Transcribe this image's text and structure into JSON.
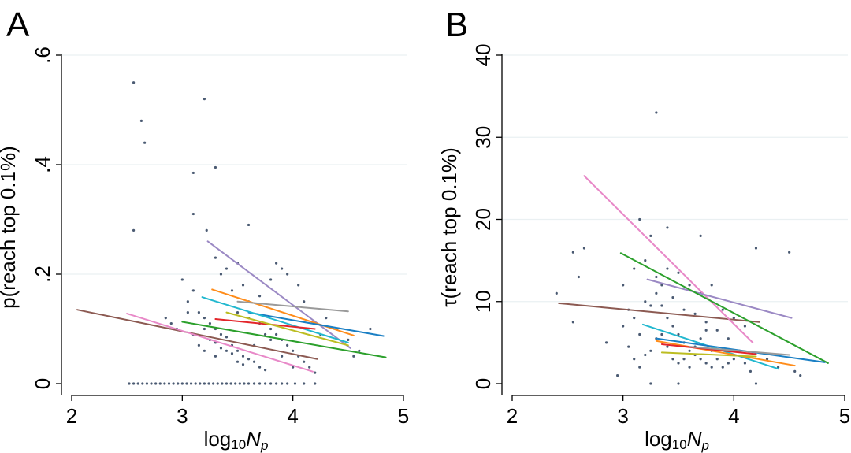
{
  "chart_data": [
    {
      "panel": "A",
      "type": "scatter",
      "ylabel": "p(reach top 0.1%)",
      "xlabel_main": "log",
      "xlabel_sub": "10",
      "xlabel_var": "N",
      "xlabel_var_sub": "p",
      "xlim": [
        2,
        5
      ],
      "ylim": [
        0,
        0.6
      ],
      "xticks": [
        2,
        3,
        4,
        5
      ],
      "xtick_labels": [
        "2",
        "3",
        "4",
        "5"
      ],
      "yticks": [
        0,
        0.2,
        0.4,
        0.6
      ],
      "ytick_labels": [
        "0",
        ".2",
        ".4",
        ".6"
      ],
      "grid": true,
      "colors": {
        "point": "#4a5a72",
        "grid": "#eaf0f2"
      },
      "points": [
        [
          2.56,
          0.55
        ],
        [
          2.63,
          0.48
        ],
        [
          2.66,
          0.44
        ],
        [
          2.56,
          0.28
        ],
        [
          3.2,
          0.52
        ],
        [
          3.1,
          0.385
        ],
        [
          3.3,
          0.395
        ],
        [
          3.1,
          0.31
        ],
        [
          3.22,
          0.28
        ],
        [
          3.6,
          0.29
        ],
        [
          3.3,
          0.23
        ],
        [
          3.35,
          0.2
        ],
        [
          3.4,
          0.21
        ],
        [
          3.5,
          0.22
        ],
        [
          3.55,
          0.18
        ],
        [
          3.45,
          0.17
        ],
        [
          3.85,
          0.22
        ],
        [
          3.9,
          0.21
        ],
        [
          3.8,
          0.19
        ],
        [
          3.95,
          0.2
        ],
        [
          4.05,
          0.18
        ],
        [
          4.1,
          0.15
        ],
        [
          3.7,
          0.16
        ],
        [
          3.6,
          0.15
        ],
        [
          3.0,
          0.19
        ],
        [
          3.1,
          0.17
        ],
        [
          3.05,
          0.15
        ],
        [
          3.15,
          0.13
        ],
        [
          3.2,
          0.12
        ],
        [
          3.25,
          0.11
        ],
        [
          3.3,
          0.1
        ],
        [
          3.35,
          0.09
        ],
        [
          3.4,
          0.085
        ],
        [
          3.45,
          0.07
        ],
        [
          3.5,
          0.06
        ],
        [
          3.55,
          0.05
        ],
        [
          3.6,
          0.045
        ],
        [
          3.65,
          0.04
        ],
        [
          3.7,
          0.03
        ],
        [
          3.75,
          0.025
        ],
        [
          3.2,
          0.1
        ],
        [
          3.25,
          0.08
        ],
        [
          3.3,
          0.075
        ],
        [
          3.35,
          0.065
        ],
        [
          3.4,
          0.06
        ],
        [
          3.45,
          0.055
        ],
        [
          3.5,
          0.04
        ],
        [
          3.55,
          0.035
        ],
        [
          3.8,
          0.1
        ],
        [
          3.85,
          0.09
        ],
        [
          3.9,
          0.08
        ],
        [
          3.95,
          0.07
        ],
        [
          4.0,
          0.06
        ],
        [
          4.05,
          0.05
        ],
        [
          4.1,
          0.04
        ],
        [
          4.15,
          0.03
        ],
        [
          3.6,
          0.12
        ],
        [
          3.7,
          0.11
        ],
        [
          3.75,
          0.09
        ],
        [
          3.8,
          0.08
        ],
        [
          3.9,
          0.05
        ],
        [
          4.0,
          0.03
        ],
        [
          4.2,
          0.02
        ],
        [
          4.55,
          0.05
        ],
        [
          2.85,
          0.12
        ],
        [
          2.9,
          0.11
        ],
        [
          2.95,
          0.1
        ],
        [
          3.05,
          0.13
        ],
        [
          3.1,
          0.09
        ],
        [
          3.15,
          0.07
        ],
        [
          3.2,
          0.06
        ],
        [
          3.3,
          0.05
        ],
        [
          4.3,
          0.12
        ],
        [
          4.4,
          0.1
        ],
        [
          4.5,
          0.08
        ],
        [
          4.6,
          0.06
        ],
        [
          4.7,
          0.1
        ],
        [
          4.25,
          0.09
        ],
        [
          3.5,
          0.13
        ],
        [
          3.65,
          0.07
        ],
        [
          2.52,
          0
        ],
        [
          2.56,
          0
        ],
        [
          2.6,
          0
        ],
        [
          2.64,
          0
        ],
        [
          2.68,
          0
        ],
        [
          2.72,
          0
        ],
        [
          2.76,
          0
        ],
        [
          2.8,
          0
        ],
        [
          2.84,
          0
        ],
        [
          2.88,
          0
        ],
        [
          2.92,
          0
        ],
        [
          2.96,
          0
        ],
        [
          3.0,
          0
        ],
        [
          3.04,
          0
        ],
        [
          3.08,
          0
        ],
        [
          3.12,
          0
        ],
        [
          3.16,
          0
        ],
        [
          3.2,
          0
        ],
        [
          3.24,
          0
        ],
        [
          3.28,
          0
        ],
        [
          3.32,
          0
        ],
        [
          3.36,
          0
        ],
        [
          3.4,
          0
        ],
        [
          3.44,
          0
        ],
        [
          3.48,
          0
        ],
        [
          3.52,
          0
        ],
        [
          3.56,
          0
        ],
        [
          3.6,
          0
        ],
        [
          3.65,
          0
        ],
        [
          3.7,
          0
        ],
        [
          3.75,
          0
        ],
        [
          3.8,
          0
        ],
        [
          3.85,
          0
        ],
        [
          3.9,
          0
        ],
        [
          3.95,
          0
        ],
        [
          4.02,
          0
        ],
        [
          4.1,
          0
        ],
        [
          4.2,
          0
        ]
      ],
      "lines": [
        {
          "color": "#8c5a52",
          "x": [
            2.05,
            4.22
          ],
          "y": [
            0.135,
            0.045
          ]
        },
        {
          "color": "#e889c8",
          "x": [
            2.5,
            4.18
          ],
          "y": [
            0.128,
            0.022
          ]
        },
        {
          "color": "#9b89c4",
          "x": [
            3.23,
            4.52
          ],
          "y": [
            0.26,
            0.065
          ]
        },
        {
          "color": "#ff8c1a",
          "x": [
            3.27,
            4.55
          ],
          "y": [
            0.172,
            0.088
          ]
        },
        {
          "color": "#1a7fc4",
          "x": [
            3.6,
            4.82
          ],
          "y": [
            0.13,
            0.087
          ]
        },
        {
          "color": "#22b8cf",
          "x": [
            3.18,
            4.5
          ],
          "y": [
            0.158,
            0.075
          ]
        },
        {
          "color": "#9a9a9a",
          "x": [
            3.5,
            4.5
          ],
          "y": [
            0.15,
            0.132
          ]
        },
        {
          "color": "#2ca02c",
          "x": [
            3.0,
            4.84
          ],
          "y": [
            0.113,
            0.048
          ]
        },
        {
          "color": "#e3252a",
          "x": [
            3.3,
            4.2
          ],
          "y": [
            0.118,
            0.1
          ]
        },
        {
          "color": "#bcbd22",
          "x": [
            3.4,
            4.5
          ],
          "y": [
            0.13,
            0.07
          ]
        }
      ]
    },
    {
      "panel": "B",
      "type": "scatter",
      "ylabel": "τ(reach top 0.1%)",
      "xlabel_main": "log",
      "xlabel_sub": "10",
      "xlabel_var": "N",
      "xlabel_var_sub": "p",
      "xlim": [
        2,
        5
      ],
      "ylim": [
        0,
        40
      ],
      "xticks": [
        2,
        3,
        4,
        5
      ],
      "xtick_labels": [
        "2",
        "3",
        "4",
        "5"
      ],
      "yticks": [
        0,
        10,
        20,
        30,
        40
      ],
      "ytick_labels": [
        "0",
        "10",
        "20",
        "30",
        "40"
      ],
      "grid": true,
      "colors": {
        "point": "#4a5a72",
        "grid": "#eaf0f2"
      },
      "points": [
        [
          3.3,
          33
        ],
        [
          2.55,
          16
        ],
        [
          2.65,
          16.5
        ],
        [
          2.6,
          13
        ],
        [
          3.15,
          20
        ],
        [
          3.25,
          18
        ],
        [
          3.4,
          19
        ],
        [
          3.7,
          18
        ],
        [
          4.2,
          16.5
        ],
        [
          4.5,
          16
        ],
        [
          2.4,
          11
        ],
        [
          2.55,
          7.5
        ],
        [
          2.85,
          5
        ],
        [
          3.0,
          7
        ],
        [
          3.05,
          9
        ],
        [
          3.1,
          8
        ],
        [
          3.15,
          6
        ],
        [
          3.2,
          10
        ],
        [
          3.25,
          9.5
        ],
        [
          3.3,
          11
        ],
        [
          3.35,
          12
        ],
        [
          3.4,
          8
        ],
        [
          3.45,
          7
        ],
        [
          3.5,
          6
        ],
        [
          3.55,
          5
        ],
        [
          3.6,
          4
        ],
        [
          3.65,
          3.5
        ],
        [
          3.7,
          3
        ],
        [
          3.75,
          2.5
        ],
        [
          3.8,
          2
        ],
        [
          3.05,
          4.5
        ],
        [
          3.1,
          3
        ],
        [
          3.15,
          2
        ],
        [
          3.2,
          3.5
        ],
        [
          3.25,
          4
        ],
        [
          3.3,
          5.5
        ],
        [
          3.35,
          6
        ],
        [
          3.4,
          4.5
        ],
        [
          3.45,
          3
        ],
        [
          3.5,
          2.5
        ],
        [
          3.55,
          3
        ],
        [
          3.6,
          2
        ],
        [
          3.65,
          4.5
        ],
        [
          3.7,
          5.5
        ],
        [
          3.75,
          6.5
        ],
        [
          3.8,
          4
        ],
        [
          3.85,
          3
        ],
        [
          3.9,
          2
        ],
        [
          3.95,
          2.5
        ],
        [
          4.0,
          3
        ],
        [
          4.05,
          4
        ],
        [
          4.1,
          2.5
        ],
        [
          4.15,
          1.5
        ],
        [
          4.2,
          0
        ],
        [
          4.3,
          3
        ],
        [
          4.4,
          2
        ],
        [
          4.55,
          1.5
        ],
        [
          4.6,
          1
        ],
        [
          2.95,
          1
        ],
        [
          3.25,
          0
        ],
        [
          3.5,
          0
        ],
        [
          3.0,
          12
        ],
        [
          3.1,
          14
        ],
        [
          3.2,
          15
        ],
        [
          3.3,
          13
        ],
        [
          3.4,
          14
        ],
        [
          3.5,
          13.5
        ],
        [
          3.6,
          12
        ],
        [
          3.7,
          11
        ],
        [
          3.8,
          12
        ],
        [
          3.9,
          9
        ],
        [
          4.0,
          8
        ],
        [
          4.1,
          7
        ],
        [
          3.35,
          9.5
        ],
        [
          3.45,
          10.5
        ],
        [
          3.55,
          9
        ],
        [
          3.65,
          8.5
        ],
        [
          3.75,
          7.5
        ],
        [
          3.85,
          6.5
        ],
        [
          3.95,
          5.5
        ]
      ],
      "lines": [
        {
          "color": "#8c5a52",
          "x": [
            2.42,
            4.23
          ],
          "y": [
            9.8,
            7.5
          ]
        },
        {
          "color": "#e889c8",
          "x": [
            2.65,
            4.17
          ],
          "y": [
            25.3,
            5.0
          ]
        },
        {
          "color": "#9b89c4",
          "x": [
            3.22,
            4.52
          ],
          "y": [
            12.7,
            8.0
          ]
        },
        {
          "color": "#2ca02c",
          "x": [
            2.98,
            4.85
          ],
          "y": [
            15.9,
            2.5
          ]
        },
        {
          "color": "#22b8cf",
          "x": [
            3.18,
            4.4
          ],
          "y": [
            7.2,
            1.8
          ]
        },
        {
          "color": "#1a7fc4",
          "x": [
            3.3,
            4.82
          ],
          "y": [
            5.5,
            2.6
          ]
        },
        {
          "color": "#ff8c1a",
          "x": [
            3.3,
            4.55
          ],
          "y": [
            5.2,
            2.2
          ]
        },
        {
          "color": "#e3252a",
          "x": [
            3.35,
            4.2
          ],
          "y": [
            4.8,
            3.6
          ]
        },
        {
          "color": "#bcbd22",
          "x": [
            3.35,
            4.2
          ],
          "y": [
            3.8,
            3.3
          ]
        },
        {
          "color": "#9a9a9a",
          "x": [
            3.6,
            4.5
          ],
          "y": [
            4.5,
            3.5
          ]
        }
      ]
    }
  ]
}
